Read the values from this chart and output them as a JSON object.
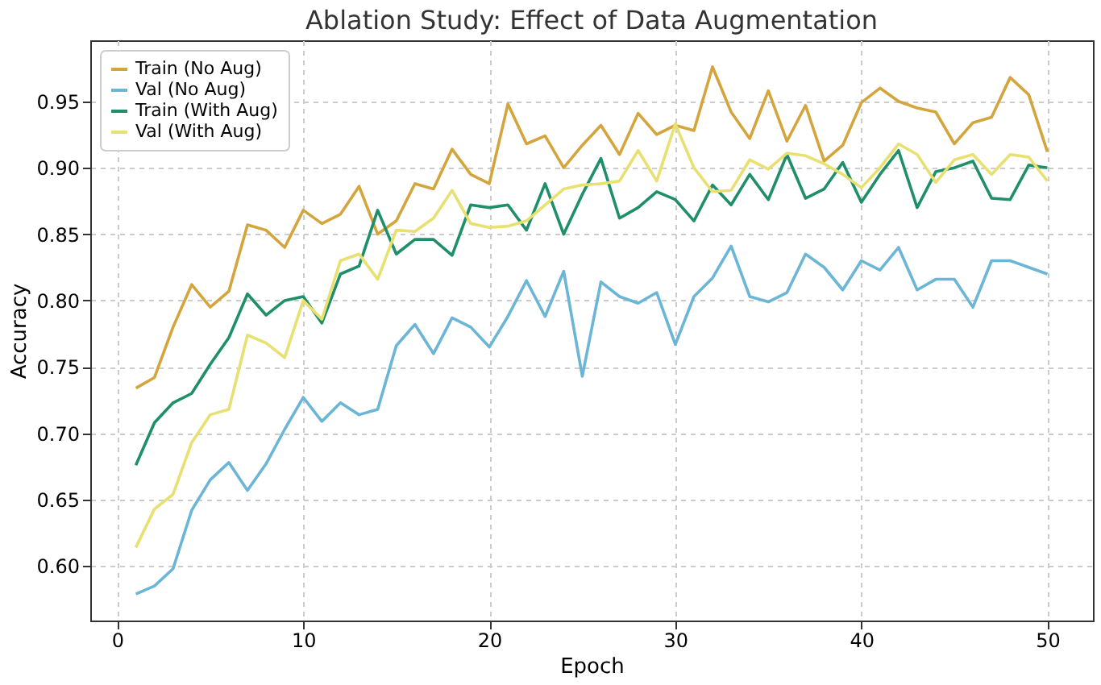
{
  "chart_data": {
    "type": "line",
    "title": "Ablation Study: Effect of Data Augmentation",
    "xlabel": "Epoch",
    "ylabel": "Accuracy",
    "x": [
      1,
      2,
      3,
      4,
      5,
      6,
      7,
      8,
      9,
      10,
      11,
      12,
      13,
      14,
      15,
      16,
      17,
      18,
      19,
      20,
      21,
      22,
      23,
      24,
      25,
      26,
      27,
      28,
      29,
      30,
      31,
      32,
      33,
      34,
      35,
      36,
      37,
      38,
      39,
      40,
      41,
      42,
      43,
      44,
      45,
      46,
      47,
      48,
      49,
      50
    ],
    "series": [
      {
        "name": "Train (No Aug)",
        "color": "#d4a53c",
        "values": [
          0.734,
          0.742,
          0.78,
          0.812,
          0.795,
          0.807,
          0.857,
          0.853,
          0.84,
          0.868,
          0.858,
          0.865,
          0.886,
          0.85,
          0.86,
          0.888,
          0.884,
          0.914,
          0.895,
          0.888,
          0.948,
          0.918,
          0.924,
          0.9,
          0.917,
          0.932,
          0.91,
          0.941,
          0.925,
          0.932,
          0.928,
          0.976,
          0.942,
          0.922,
          0.958,
          0.92,
          0.947,
          0.905,
          0.917,
          0.949,
          0.96,
          0.95,
          0.945,
          0.942,
          0.918,
          0.934,
          0.938,
          0.968,
          0.955,
          0.912
        ]
      },
      {
        "name": "Val (No Aug)",
        "color": "#6bb5d6",
        "values": [
          0.579,
          0.585,
          0.598,
          0.642,
          0.665,
          0.678,
          0.657,
          0.677,
          0.703,
          0.727,
          0.709,
          0.723,
          0.714,
          0.718,
          0.766,
          0.782,
          0.76,
          0.787,
          0.78,
          0.765,
          0.788,
          0.815,
          0.788,
          0.822,
          0.743,
          0.814,
          0.803,
          0.798,
          0.806,
          0.767,
          0.803,
          0.817,
          0.841,
          0.803,
          0.799,
          0.806,
          0.835,
          0.825,
          0.808,
          0.83,
          0.823,
          0.84,
          0.808,
          0.816,
          0.816,
          0.795,
          0.83,
          0.83,
          0.825,
          0.82
        ]
      },
      {
        "name": "Train (With Aug)",
        "color": "#1f8f6a",
        "values": [
          0.676,
          0.708,
          0.723,
          0.73,
          0.752,
          0.772,
          0.805,
          0.789,
          0.8,
          0.803,
          0.783,
          0.82,
          0.826,
          0.868,
          0.835,
          0.846,
          0.846,
          0.834,
          0.872,
          0.87,
          0.872,
          0.853,
          0.888,
          0.85,
          0.88,
          0.907,
          0.862,
          0.87,
          0.882,
          0.876,
          0.86,
          0.887,
          0.872,
          0.895,
          0.876,
          0.91,
          0.877,
          0.884,
          0.904,
          0.874,
          0.895,
          0.913,
          0.87,
          0.897,
          0.9,
          0.905,
          0.877,
          0.876,
          0.902,
          0.9
        ]
      },
      {
        "name": "Val (With Aug)",
        "color": "#e8e070",
        "values": [
          0.614,
          0.643,
          0.654,
          0.693,
          0.714,
          0.718,
          0.774,
          0.768,
          0.757,
          0.8,
          0.786,
          0.83,
          0.835,
          0.816,
          0.853,
          0.852,
          0.862,
          0.883,
          0.858,
          0.855,
          0.856,
          0.86,
          0.872,
          0.884,
          0.887,
          0.888,
          0.89,
          0.913,
          0.89,
          0.933,
          0.9,
          0.882,
          0.883,
          0.906,
          0.899,
          0.911,
          0.909,
          0.903,
          0.895,
          0.885,
          0.9,
          0.918,
          0.91,
          0.889,
          0.906,
          0.91,
          0.895,
          0.91,
          0.908,
          0.89
        ]
      }
    ],
    "xlim": [
      -1.45,
      52.45
    ],
    "xticks": [
      0,
      10,
      20,
      30,
      40,
      50
    ],
    "ylim": [
      0.559,
      0.996
    ],
    "yticks": [
      {
        "value": 0.6,
        "label": "0.60"
      },
      {
        "value": 0.65,
        "label": "0.65"
      },
      {
        "value": 0.7,
        "label": "0.70"
      },
      {
        "value": 0.75,
        "label": "0.75"
      },
      {
        "value": 0.8,
        "label": "0.80"
      },
      {
        "value": 0.85,
        "label": "0.85"
      },
      {
        "value": 0.9,
        "label": "0.90"
      },
      {
        "value": 0.95,
        "label": "0.95"
      }
    ],
    "grid": true,
    "legend": "top left",
    "marker": "none",
    "line_style": "solid"
  }
}
